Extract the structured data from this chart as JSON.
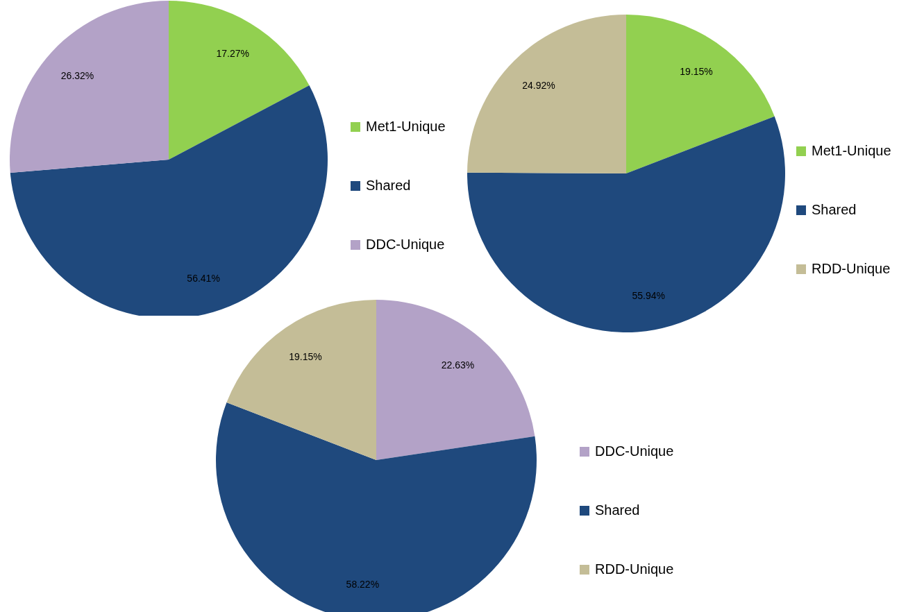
{
  "chart_data": [
    {
      "type": "pie",
      "categories": [
        "Met1-Unique",
        "Shared",
        "DDC-Unique"
      ],
      "values": [
        17.27,
        56.41,
        26.32
      ],
      "colors": [
        "#92d050",
        "#1f497d",
        "#b3a2c7"
      ],
      "value_labels": [
        "17.27%",
        "56.41%",
        "26.32%"
      ],
      "legend": "right"
    },
    {
      "type": "pie",
      "categories": [
        "Met1-Unique",
        "Shared",
        "RDD-Unique"
      ],
      "values": [
        19.15,
        55.94,
        24.92
      ],
      "colors": [
        "#92d050",
        "#1f497d",
        "#c4bd97"
      ],
      "value_labels": [
        "19.15%",
        "55.94%",
        "24.92%"
      ],
      "legend": "right"
    },
    {
      "type": "pie",
      "categories": [
        "DDC-Unique",
        "Shared",
        "RDD-Unique"
      ],
      "values": [
        22.63,
        58.22,
        19.15
      ],
      "colors": [
        "#b3a2c7",
        "#1f497d",
        "#c4bd97"
      ],
      "value_labels": [
        "22.63%",
        "58.22%",
        "19.15%"
      ],
      "legend": "right"
    }
  ]
}
